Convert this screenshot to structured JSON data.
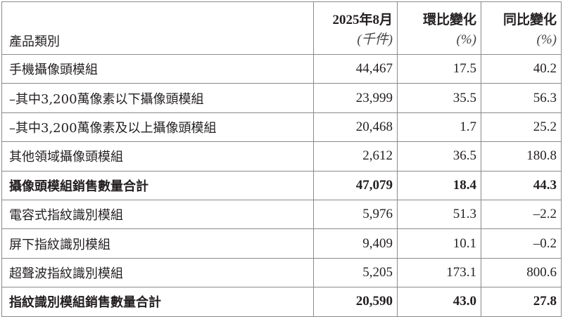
{
  "header": {
    "category": "產品類別",
    "month": "2025年8月",
    "month_unit": "(千件)",
    "mom": "環比變化",
    "mom_unit": "(%)",
    "yoy": "同比變化",
    "yoy_unit": "(%)"
  },
  "rows": [
    {
      "name": "手機攝像頭模組",
      "value": "44,467",
      "mom": "17.5",
      "yoy": "40.2",
      "total": false
    },
    {
      "name": "–其中3,200萬像素以下攝像頭模組",
      "value": "23,999",
      "mom": "35.5",
      "yoy": "56.3",
      "total": false
    },
    {
      "name": "–其中3,200萬像素及以上攝像頭模組",
      "value": "20,468",
      "mom": "1.7",
      "yoy": "25.2",
      "total": false
    },
    {
      "name": "其他領域攝像頭模組",
      "value": "2,612",
      "mom": "36.5",
      "yoy": "180.8",
      "total": false
    },
    {
      "name": "攝像頭模組銷售數量合計",
      "value": "47,079",
      "mom": "18.4",
      "yoy": "44.3",
      "total": true
    },
    {
      "name": "電容式指紋識別模組",
      "value": "5,976",
      "mom": "51.3",
      "yoy": "–2.2",
      "total": false
    },
    {
      "name": "屏下指紋識別模組",
      "value": "9,409",
      "mom": "10.1",
      "yoy": "–0.2",
      "total": false
    },
    {
      "name": "超聲波指紋識別模組",
      "value": "5,205",
      "mom": "173.1",
      "yoy": "800.6",
      "total": false
    },
    {
      "name": "指紋識別模組銷售數量合計",
      "value": "20,590",
      "mom": "43.0",
      "yoy": "27.8",
      "total": true
    }
  ]
}
